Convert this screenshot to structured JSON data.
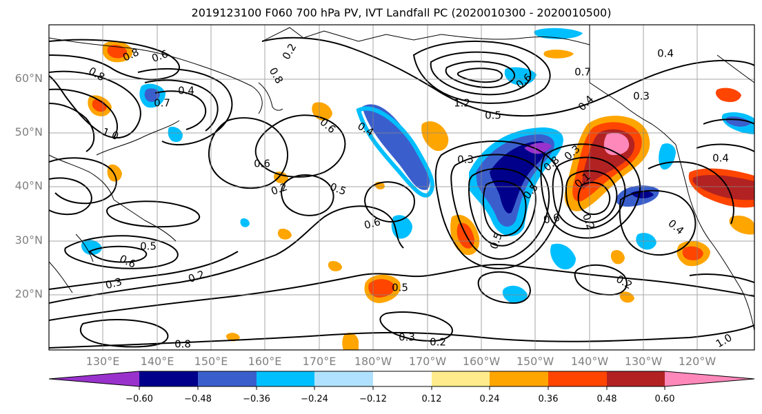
{
  "figure": {
    "title": "2019123100 F060 700 hPa PV, IVT Landfall PC (2020010300 - 2020010500)"
  },
  "map": {
    "lat_labels": [
      "60°N",
      "50°N",
      "40°N",
      "30°N",
      "20°N"
    ],
    "lon_labels": [
      "130°E",
      "140°E",
      "150°E",
      "160°E",
      "170°E",
      "180°W",
      "170°W",
      "160°W",
      "150°W",
      "140°W",
      "130°W",
      "120°W"
    ],
    "contour_labels": [
      "0.8",
      "0.6",
      "0.8",
      "0.4",
      "0.7",
      "1.0",
      "0.2",
      "0.6",
      "0.8",
      "0.4",
      "1.2",
      "0.7",
      "0.5",
      "0.3",
      "0.4",
      "0.8",
      "0.3",
      "0.1",
      "0.5",
      "0.6",
      "0.5",
      "0.4",
      "0.2",
      "0.5",
      "0.6",
      "0.5",
      "0.6",
      "0.2",
      "0.3",
      "0.2",
      "0.3",
      "0.4",
      "0.6",
      "0.5",
      "0.2",
      "0.3",
      "0.2",
      "1.0",
      "0.8",
      "0.6",
      "0.4"
    ]
  },
  "colorbar": {
    "ticks": [
      "−0.60",
      "−0.48",
      "−0.36",
      "−0.24",
      "−0.12",
      "0.12",
      "0.24",
      "0.36",
      "0.48",
      "0.60"
    ],
    "colors": [
      "#9932cc",
      "#00008b",
      "#3a5fcd",
      "#00bfff",
      "#b0e2ff",
      "#ffffff",
      "#ffeb8b",
      "#ffa500",
      "#ff4500",
      "#b22222",
      "#ff88bb"
    ]
  }
}
